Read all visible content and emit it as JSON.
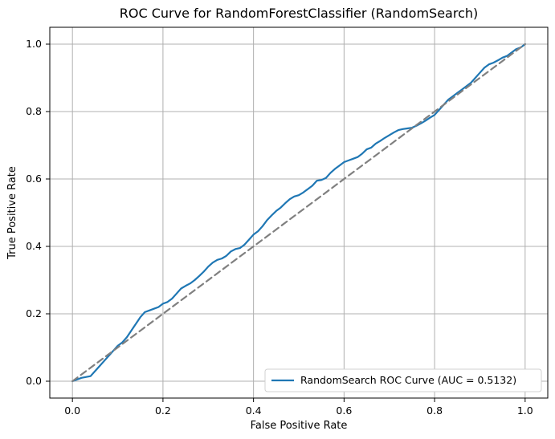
{
  "chart_data": {
    "type": "line",
    "title": "ROC Curve for RandomForestClassifier (RandomSearch)",
    "xlabel": "False Positive Rate",
    "ylabel": "True Positive Rate",
    "xlim": [
      -0.05,
      1.05
    ],
    "ylim": [
      -0.05,
      1.05
    ],
    "xticks": [
      0.0,
      0.2,
      0.4,
      0.6,
      0.8,
      1.0
    ],
    "yticks": [
      0.0,
      0.2,
      0.4,
      0.6,
      0.8,
      1.0
    ],
    "xtick_labels": [
      "0.0",
      "0.2",
      "0.4",
      "0.6",
      "0.8",
      "1.0"
    ],
    "ytick_labels": [
      "0.0",
      "0.2",
      "0.4",
      "0.6",
      "0.8",
      "1.0"
    ],
    "grid": true,
    "legend_position": "lower-right",
    "series": [
      {
        "name": "RandomSearch ROC Curve (AUC = 0.5132)",
        "color": "#1f77b4",
        "style": "solid",
        "x": [
          0.0,
          0.02,
          0.04,
          0.05,
          0.06,
          0.07,
          0.08,
          0.09,
          0.1,
          0.11,
          0.12,
          0.13,
          0.14,
          0.15,
          0.16,
          0.17,
          0.18,
          0.19,
          0.2,
          0.21,
          0.22,
          0.23,
          0.24,
          0.25,
          0.26,
          0.27,
          0.28,
          0.29,
          0.3,
          0.31,
          0.32,
          0.33,
          0.34,
          0.35,
          0.36,
          0.37,
          0.38,
          0.39,
          0.4,
          0.41,
          0.42,
          0.43,
          0.44,
          0.45,
          0.46,
          0.47,
          0.48,
          0.49,
          0.5,
          0.51,
          0.52,
          0.53,
          0.54,
          0.55,
          0.56,
          0.57,
          0.58,
          0.59,
          0.6,
          0.61,
          0.62,
          0.63,
          0.64,
          0.65,
          0.66,
          0.67,
          0.68,
          0.69,
          0.7,
          0.71,
          0.72,
          0.73,
          0.74,
          0.75,
          0.76,
          0.77,
          0.78,
          0.79,
          0.8,
          0.81,
          0.82,
          0.83,
          0.84,
          0.85,
          0.86,
          0.87,
          0.88,
          0.89,
          0.9,
          0.91,
          0.92,
          0.93,
          0.94,
          0.95,
          0.96,
          0.97,
          0.98,
          0.99,
          1.0
        ],
        "y": [
          0.0,
          0.01,
          0.015,
          0.03,
          0.045,
          0.06,
          0.075,
          0.09,
          0.105,
          0.115,
          0.13,
          0.15,
          0.17,
          0.19,
          0.205,
          0.21,
          0.215,
          0.22,
          0.23,
          0.235,
          0.245,
          0.26,
          0.275,
          0.283,
          0.29,
          0.3,
          0.312,
          0.325,
          0.34,
          0.352,
          0.36,
          0.364,
          0.372,
          0.385,
          0.392,
          0.395,
          0.405,
          0.42,
          0.435,
          0.445,
          0.46,
          0.478,
          0.492,
          0.505,
          0.515,
          0.528,
          0.54,
          0.548,
          0.552,
          0.56,
          0.57,
          0.58,
          0.595,
          0.597,
          0.603,
          0.618,
          0.63,
          0.64,
          0.65,
          0.655,
          0.66,
          0.665,
          0.675,
          0.688,
          0.693,
          0.705,
          0.713,
          0.722,
          0.73,
          0.738,
          0.745,
          0.748,
          0.75,
          0.752,
          0.758,
          0.765,
          0.773,
          0.782,
          0.79,
          0.805,
          0.82,
          0.835,
          0.845,
          0.855,
          0.865,
          0.875,
          0.885,
          0.9,
          0.915,
          0.93,
          0.94,
          0.945,
          0.952,
          0.96,
          0.965,
          0.975,
          0.985,
          0.99,
          1.0
        ]
      },
      {
        "color": "#808080",
        "style": "dashed",
        "x": [
          0.0,
          1.0
        ],
        "y": [
          0.0,
          1.0
        ]
      }
    ]
  }
}
